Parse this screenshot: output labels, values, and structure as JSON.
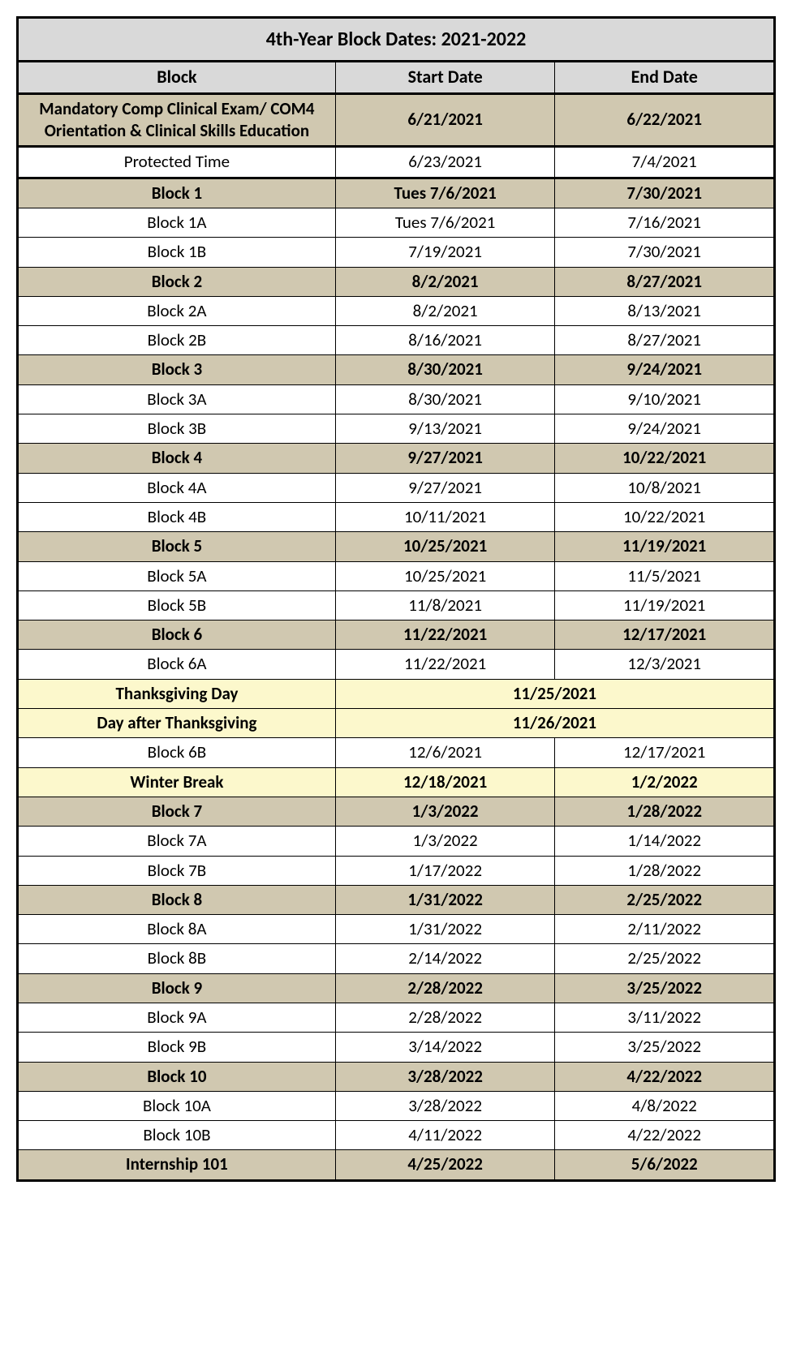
{
  "colors": {
    "title_bg": "#d9d9d9",
    "block_bg": "#d0c8b0",
    "holiday_bg": "#fcf8cc",
    "white": "#ffffff"
  },
  "title": "4th-Year Block Dates: 2021-2022",
  "columns": [
    "Block",
    "Start Date",
    "End Date"
  ],
  "rows": [
    {
      "type": "block",
      "bold": true,
      "bg": "block_bg",
      "sep": true,
      "block": "Mandatory Comp Clinical Exam/ COM4 Orientation & Clinical Skills Education",
      "start": "6/21/2021",
      "end": "6/22/2021"
    },
    {
      "type": "row",
      "bold": false,
      "bg": "white",
      "sep": true,
      "block": "Protected Time",
      "start": "6/23/2021",
      "end": "7/4/2021"
    },
    {
      "type": "block",
      "bold": true,
      "bg": "block_bg",
      "sep": false,
      "block": "Block 1",
      "start": "Tues 7/6/2021",
      "end": "7/30/2021"
    },
    {
      "type": "row",
      "bold": false,
      "bg": "white",
      "sep": false,
      "block": "Block 1A",
      "start": "Tues 7/6/2021",
      "end": "7/16/2021"
    },
    {
      "type": "row",
      "bold": false,
      "bg": "white",
      "sep": false,
      "block": "Block 1B",
      "start": "7/19/2021",
      "end": "7/30/2021"
    },
    {
      "type": "block",
      "bold": true,
      "bg": "block_bg",
      "sep": false,
      "block": "Block 2",
      "start": "8/2/2021",
      "end": "8/27/2021"
    },
    {
      "type": "row",
      "bold": false,
      "bg": "white",
      "sep": false,
      "block": "Block 2A",
      "start": "8/2/2021",
      "end": "8/13/2021"
    },
    {
      "type": "row",
      "bold": false,
      "bg": "white",
      "sep": false,
      "block": "Block 2B",
      "start": "8/16/2021",
      "end": "8/27/2021"
    },
    {
      "type": "block",
      "bold": true,
      "bg": "block_bg",
      "sep": false,
      "block": "Block 3",
      "start": "8/30/2021",
      "end": "9/24/2021"
    },
    {
      "type": "row",
      "bold": false,
      "bg": "white",
      "sep": false,
      "block": "Block 3A",
      "start": "8/30/2021",
      "end": "9/10/2021"
    },
    {
      "type": "row",
      "bold": false,
      "bg": "white",
      "sep": false,
      "block": "Block 3B",
      "start": "9/13/2021",
      "end": "9/24/2021"
    },
    {
      "type": "block",
      "bold": true,
      "bg": "block_bg",
      "sep": false,
      "block": "Block 4",
      "start": "9/27/2021",
      "end": "10/22/2021"
    },
    {
      "type": "row",
      "bold": false,
      "bg": "white",
      "sep": false,
      "block": "Block 4A",
      "start": "9/27/2021",
      "end": "10/8/2021"
    },
    {
      "type": "row",
      "bold": false,
      "bg": "white",
      "sep": false,
      "block": "Block 4B",
      "start": "10/11/2021",
      "end": "10/22/2021"
    },
    {
      "type": "block",
      "bold": true,
      "bg": "block_bg",
      "sep": false,
      "block": "Block 5",
      "start": "10/25/2021",
      "end": "11/19/2021"
    },
    {
      "type": "row",
      "bold": false,
      "bg": "white",
      "sep": false,
      "block": "Block 5A",
      "start": "10/25/2021",
      "end": "11/5/2021"
    },
    {
      "type": "row",
      "bold": false,
      "bg": "white",
      "sep": false,
      "block": "Block 5B",
      "start": "11/8/2021",
      "end": "11/19/2021"
    },
    {
      "type": "block",
      "bold": true,
      "bg": "block_bg",
      "sep": false,
      "block": "Block 6",
      "start": "11/22/2021",
      "end": "12/17/2021"
    },
    {
      "type": "row",
      "bold": false,
      "bg": "white",
      "sep": false,
      "block": "Block 6A",
      "start": "11/22/2021",
      "end": "12/3/2021"
    },
    {
      "type": "holiday",
      "bold": true,
      "bg": "holiday_bg",
      "sep": false,
      "block": "Thanksgiving Day",
      "date": "11/25/2021"
    },
    {
      "type": "holiday",
      "bold": true,
      "bg": "holiday_bg",
      "sep": false,
      "block": "Day after Thanksgiving",
      "date": "11/26/2021"
    },
    {
      "type": "row",
      "bold": false,
      "bg": "white",
      "sep": false,
      "block": "Block 6B",
      "start": "12/6/2021",
      "end": "12/17/2021"
    },
    {
      "type": "row",
      "bold": true,
      "bg": "holiday_bg",
      "sep": false,
      "block": "Winter Break",
      "start": "12/18/2021",
      "end": "1/2/2022"
    },
    {
      "type": "block",
      "bold": true,
      "bg": "block_bg",
      "sep": false,
      "block": "Block 7",
      "start": "1/3/2022",
      "end": "1/28/2022"
    },
    {
      "type": "row",
      "bold": false,
      "bg": "white",
      "sep": false,
      "block": "Block 7A",
      "start": "1/3/2022",
      "end": "1/14/2022"
    },
    {
      "type": "row",
      "bold": false,
      "bg": "white",
      "sep": false,
      "block": "Block 7B",
      "start": "1/17/2022",
      "end": "1/28/2022"
    },
    {
      "type": "block",
      "bold": true,
      "bg": "block_bg",
      "sep": false,
      "block": "Block 8",
      "start": "1/31/2022",
      "end": "2/25/2022"
    },
    {
      "type": "row",
      "bold": false,
      "bg": "white",
      "sep": false,
      "block": "Block 8A",
      "start": "1/31/2022",
      "end": "2/11/2022"
    },
    {
      "type": "row",
      "bold": false,
      "bg": "white",
      "sep": false,
      "block": "Block 8B",
      "start": "2/14/2022",
      "end": "2/25/2022"
    },
    {
      "type": "block",
      "bold": true,
      "bg": "block_bg",
      "sep": false,
      "block": "Block 9",
      "start": "2/28/2022",
      "end": "3/25/2022"
    },
    {
      "type": "row",
      "bold": false,
      "bg": "white",
      "sep": false,
      "block": "Block 9A",
      "start": "2/28/2022",
      "end": "3/11/2022"
    },
    {
      "type": "row",
      "bold": false,
      "bg": "white",
      "sep": false,
      "block": "Block 9B",
      "start": "3/14/2022",
      "end": "3/25/2022"
    },
    {
      "type": "block",
      "bold": true,
      "bg": "block_bg",
      "sep": false,
      "block": "Block 10",
      "start": "3/28/2022",
      "end": "4/22/2022"
    },
    {
      "type": "row",
      "bold": false,
      "bg": "white",
      "sep": false,
      "block": "Block 10A",
      "start": "3/28/2022",
      "end": "4/8/2022"
    },
    {
      "type": "row",
      "bold": false,
      "bg": "white",
      "sep": false,
      "block": "Block 10B",
      "start": "4/11/2022",
      "end": "4/22/2022"
    },
    {
      "type": "block",
      "bold": true,
      "bg": "block_bg",
      "sep": false,
      "block": "Internship 101",
      "start": "4/25/2022",
      "end": "5/6/2022"
    }
  ]
}
